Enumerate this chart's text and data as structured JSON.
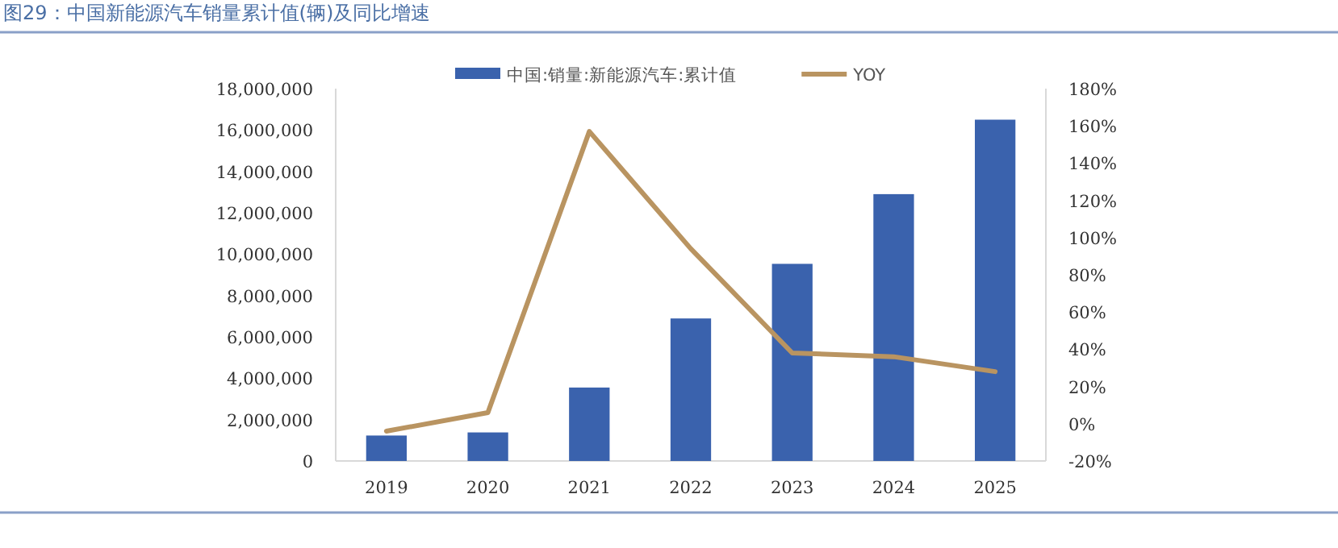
{
  "chart_data": {
    "type": "bar",
    "title": "图29：中国新能源汽车销量累计值(辆)及同比增速",
    "categories": [
      "2019",
      "2020",
      "2021",
      "2022",
      "2023",
      "2024",
      "2025"
    ],
    "series": [
      {
        "name": "中国:销量:新能源汽车:累计值",
        "color": "#3a62ad",
        "values": [
          1230000,
          1380000,
          3550000,
          6890000,
          9530000,
          12900000,
          16500000
        ]
      },
      {
        "name": "YOY",
        "type": "line",
        "axis": "y2",
        "color": "#b99461",
        "values": [
          -4,
          6,
          157,
          94,
          38,
          36,
          28
        ]
      }
    ],
    "ylim": [
      0,
      18000000
    ],
    "yticks": [
      {
        "value": 0,
        "label": "0"
      },
      {
        "value": 2000000,
        "label": "2,000,000"
      },
      {
        "value": 4000000,
        "label": "4,000,000"
      },
      {
        "value": 6000000,
        "label": "6,000,000"
      },
      {
        "value": 8000000,
        "label": "8,000,000"
      },
      {
        "value": 10000000,
        "label": "10,000,000"
      },
      {
        "value": 12000000,
        "label": "12,000,000"
      },
      {
        "value": 14000000,
        "label": "14,000,000"
      },
      {
        "value": 16000000,
        "label": "16,000,000"
      },
      {
        "value": 18000000,
        "label": "18,000,000"
      }
    ],
    "y2lim": [
      -20,
      180
    ],
    "y2ticks": [
      {
        "value": -20,
        "label": "-20%"
      },
      {
        "value": 0,
        "label": "0%"
      },
      {
        "value": 20,
        "label": "20%"
      },
      {
        "value": 40,
        "label": "40%"
      },
      {
        "value": 60,
        "label": "60%"
      },
      {
        "value": 80,
        "label": "80%"
      },
      {
        "value": 100,
        "label": "100%"
      },
      {
        "value": 120,
        "label": "120%"
      },
      {
        "value": 140,
        "label": "140%"
      },
      {
        "value": 160,
        "label": "160%"
      },
      {
        "value": 180,
        "label": "180%"
      }
    ],
    "legend": "top",
    "grid": false
  }
}
